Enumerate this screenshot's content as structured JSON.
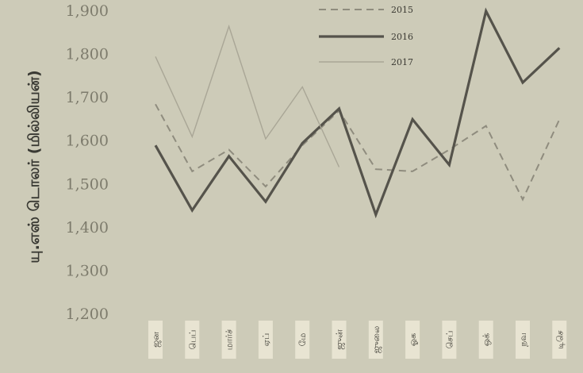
{
  "chart_data": {
    "type": "line",
    "title": "",
    "xlabel": "",
    "ylabel": "யு.எஸ் டொலர் (மில்லியன்)",
    "ylim": [
      1200,
      1900
    ],
    "yticks": [
      "1,200",
      "1,300",
      "1,400",
      "1,500",
      "1,600",
      "1,700",
      "1,800",
      "1,900"
    ],
    "categories": [
      "ஜன",
      "பெப்",
      "மார்ச்",
      "ஏப்",
      "மே",
      "ஜுன்",
      "ஜுலை",
      "ஓக",
      "செப்",
      "ஒக்",
      "நவ",
      "டிசெ"
    ],
    "legend_position": "top-right",
    "series": [
      {
        "name": "2015",
        "style": "dashed",
        "color": "#8f8c7e",
        "values": [
          1685,
          1530,
          1580,
          1495,
          1590,
          1670,
          1535,
          1530,
          1580,
          1635,
          1465,
          1650
        ]
      },
      {
        "name": "2016",
        "style": "solid-thick",
        "color": "#55534b",
        "values": [
          1590,
          1440,
          1565,
          1460,
          1595,
          1675,
          1430,
          1650,
          1545,
          1900,
          1735,
          1815
        ]
      },
      {
        "name": "2017",
        "style": "solid-thin",
        "color": "#a9a696",
        "values": [
          1795,
          1610,
          1865,
          1605,
          1725,
          1540,
          null,
          null,
          null,
          null,
          null,
          null
        ]
      }
    ]
  }
}
